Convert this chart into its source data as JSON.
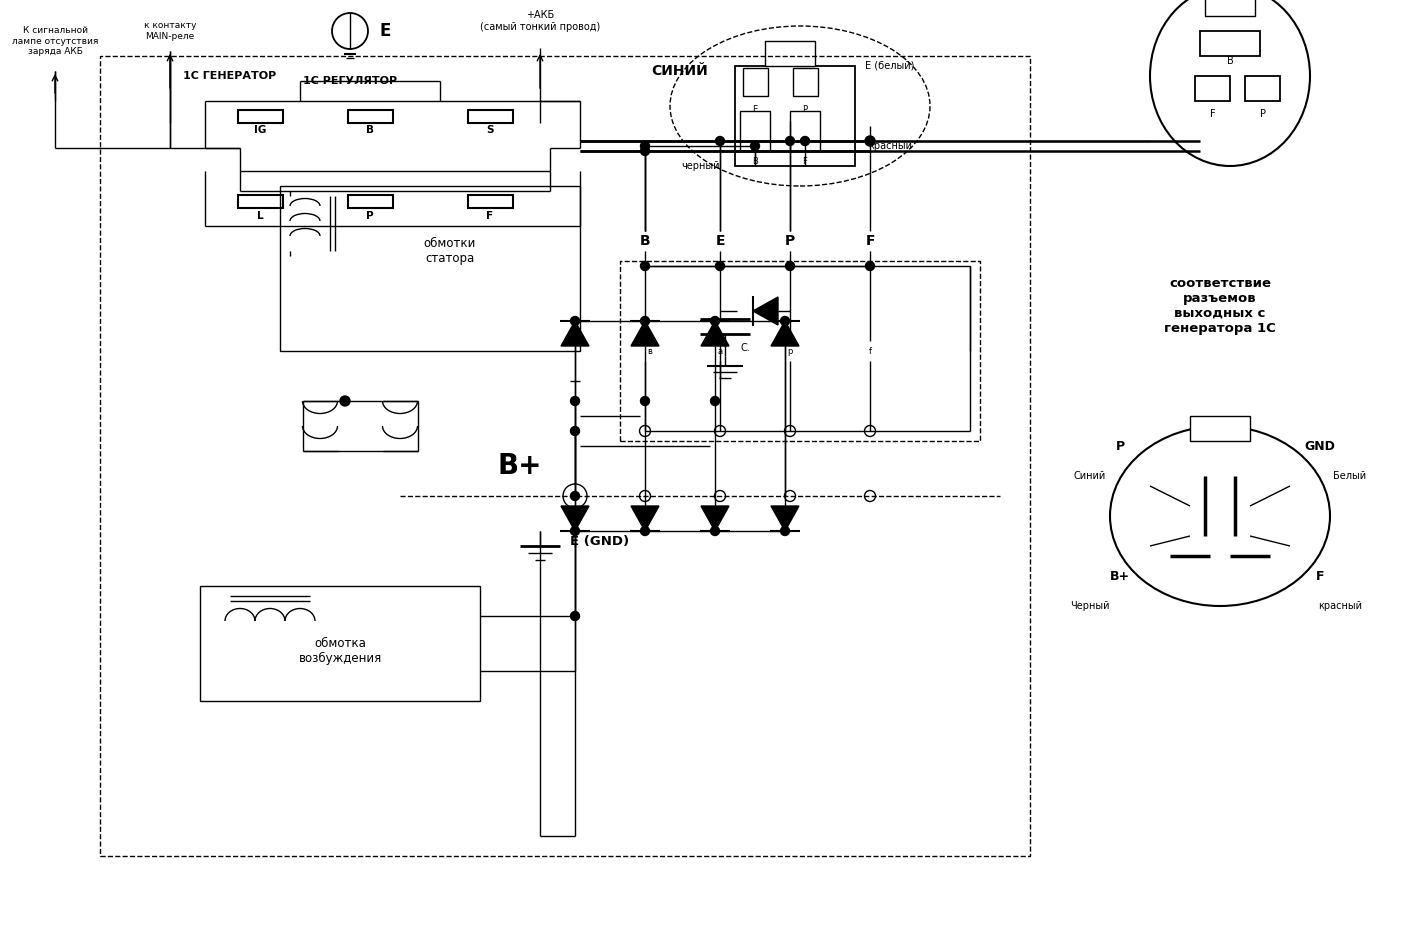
{
  "bg_color": "#ffffff",
  "fig_w": 14.11,
  "fig_h": 9.26,
  "dpi": 100,
  "label_signal": "К сигнальной\nлампе отсутствия\nзаряда АКБ",
  "label_main_relay": "к контакту\nMAIN-реле",
  "label_E": "Е",
  "label_akb": "+АКБ\n(самый тонкий провод)",
  "label_regulator": "1С РЕГУЛЯТОР",
  "label_generator": "1С ГЕНЕРАТОР",
  "label_bplus": "B+",
  "label_egnd": "E (GND)",
  "label_connector": "соответствие\nразъемов\nвыходных с\nгенератора 1С",
  "label_siniy": "СИНИЙ",
  "label_ewhite": "Е (белый)",
  "label_cherny": "черный",
  "label_krasny": "красный",
  "label_stator": "обмотки\nстатора",
  "label_field": "обмотка\nвозбуждения",
  "label_P": "P",
  "label_GND": "GND",
  "label_Bplus": "B+",
  "label_F": "F",
  "label_Siniy2": "Синий",
  "label_Bely": "Белый",
  "label_Cherny2": "Черный",
  "label_krasny2": "красный"
}
